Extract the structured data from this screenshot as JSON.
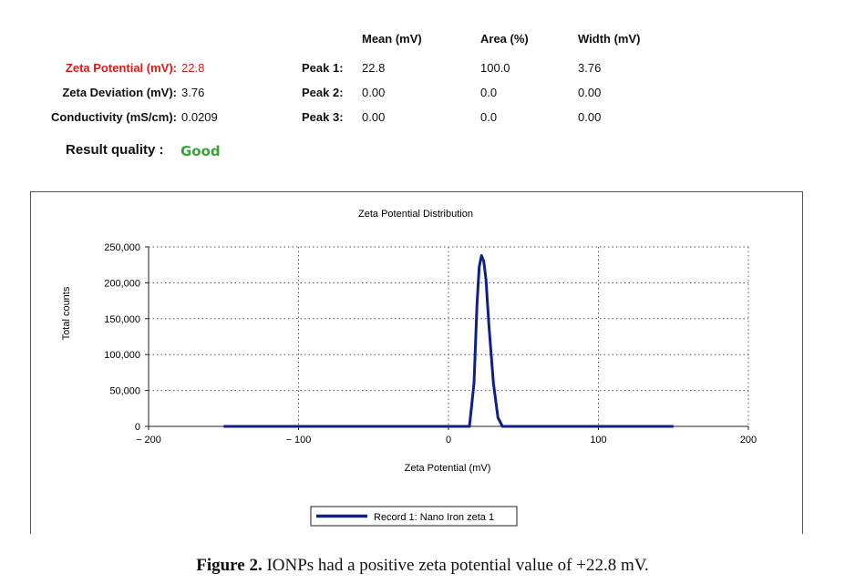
{
  "results": {
    "headers": {
      "mean": "Mean (mV)",
      "area": "Area (%)",
      "width": "Width (mV)"
    },
    "zeta_potential_label": "Zeta Potential (mV):",
    "zeta_potential_value": "22.8",
    "zeta_deviation_label": "Zeta Deviation (mV):",
    "zeta_deviation_value": "3.76",
    "conductivity_label": "Conductivity (mS/cm):",
    "conductivity_value": "0.0209",
    "result_quality_label": "Result quality :",
    "result_quality_value": "Good",
    "peaks": [
      {
        "label": "Peak 1:",
        "mean": "22.8",
        "area": "100.0",
        "width": "3.76"
      },
      {
        "label": "Peak 2:",
        "mean": "0.00",
        "area": "0.0",
        "width": "0.00"
      },
      {
        "label": "Peak 3:",
        "mean": "0.00",
        "area": "0.0",
        "width": "0.00"
      }
    ],
    "colors": {
      "highlight": "#e01818",
      "good": "#2fa82f"
    }
  },
  "chart_data": {
    "type": "line",
    "title": "Zeta Potential Distribution",
    "xlabel": "Zeta Potential (mV)",
    "ylabel": "Total counts",
    "xlim": [
      -200,
      200
    ],
    "ylim": [
      0,
      250000
    ],
    "x_ticks": [
      -200,
      -100,
      0,
      100,
      200
    ],
    "x_tick_labels": [
      "− 200",
      "− 100",
      "0",
      "100",
      "200"
    ],
    "y_ticks": [
      0,
      50000,
      100000,
      150000,
      200000,
      250000
    ],
    "y_tick_labels": [
      "0",
      "50,000",
      "100,000",
      "150,000",
      "200,000",
      "250,000"
    ],
    "grid": true,
    "legend_position": "bottom-center",
    "series": [
      {
        "name": "Record 1: Nano Iron zeta 1",
        "color": "#10208a",
        "x": [
          -150,
          10,
          14,
          17,
          19,
          20.5,
          22,
          23.5,
          25,
          27,
          30,
          33,
          36,
          40,
          150
        ],
        "y": [
          0,
          0,
          0,
          60000,
          170000,
          222000,
          238000,
          230000,
          205000,
          140000,
          60000,
          12000,
          0,
          0,
          0
        ]
      }
    ]
  },
  "caption": {
    "label": "Figure 2.",
    "text": "IONPs had a positive zeta potential value of +22.8 mV."
  }
}
